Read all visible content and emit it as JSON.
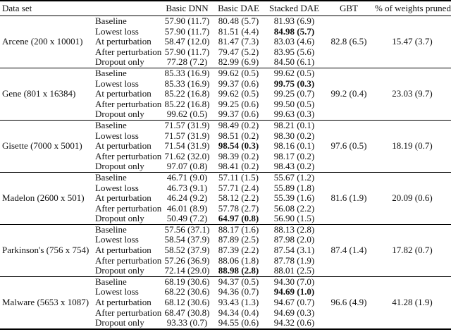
{
  "table": {
    "column_headers": {
      "dataset": "Data set",
      "method": "",
      "basic_dnn": "Basic DNN",
      "basic_dae": "Basic DAE",
      "stacked_dae": "Stacked DAE",
      "gbt": "GBT",
      "pruned": "% of weights pruned"
    },
    "value_format": "mean (std)",
    "groups": [
      {
        "dataset": "Arcene (200 x 10001)",
        "gbt": "82.8 (6.5)",
        "pruned": "15.47 (3.7)",
        "rows": [
          {
            "method": "Baseline",
            "values": [
              "57.90 (11.7)",
              "80.48 (5.7)",
              "81.93 (6.9)"
            ]
          },
          {
            "method": "Lowest loss",
            "values": [
              "57.90 (11.7)",
              "81.51 (4.4)",
              "84.98 (5.7)"
            ],
            "bold": 2
          },
          {
            "method": "At perturbation",
            "values": [
              "58.47 (12.0)",
              "81.47 (7.3)",
              "83.03 (4.6)"
            ]
          },
          {
            "method": "After perturbation",
            "values": [
              "57.90 (11.7)",
              "79.47 (5.2)",
              "83.95 (5.6)"
            ]
          },
          {
            "method": "Dropout only",
            "values": [
              "77.28 (7.2)",
              "82.99 (6.9)",
              "84.50 (6.1)"
            ]
          }
        ]
      },
      {
        "dataset": "Gene (801 x 16384)",
        "gbt": "99.2 (0.4)",
        "pruned": "23.03 (9.7)",
        "rows": [
          {
            "method": "Baseline",
            "values": [
              "85.33 (16.9)",
              "99.62 (0.5)",
              "99.62 (0.5)"
            ]
          },
          {
            "method": "Lowest loss",
            "values": [
              "85.33 (16.9)",
              "99.37 (0.6)",
              "99.75 (0.3)"
            ],
            "bold": 2
          },
          {
            "method": "At perturbation",
            "values": [
              "85.22 (16.8)",
              "99.62 (0.5)",
              "99.25 (0.7)"
            ]
          },
          {
            "method": "After perturbation",
            "values": [
              "85.22 (16.8)",
              "99.25 (0.6)",
              "99.50 (0.5)"
            ]
          },
          {
            "method": "Dropout only",
            "values": [
              "99.62 (0.5)",
              "99.37 (0.6)",
              "99.63 (0.3)"
            ]
          }
        ]
      },
      {
        "dataset": "Gisette (7000 x 5001)",
        "gbt": "97.6 (0.5)",
        "pruned": "18.19 (0.7)",
        "rows": [
          {
            "method": "Baseline",
            "values": [
              "71.57 (31.9)",
              "98.49 (0.2)",
              "98.21 (0.1)"
            ]
          },
          {
            "method": "Lowest loss",
            "values": [
              "71.57 (31.9)",
              "98.51 (0.2)",
              "98.30 (0.2)"
            ]
          },
          {
            "method": "At perturbation",
            "values": [
              "71.54 (31.9)",
              "98.54 (0.3)",
              "98.16 (0.1)"
            ],
            "bold": 1
          },
          {
            "method": "After perturbation",
            "values": [
              "71.62 (32.0)",
              "98.39 (0.2)",
              "98.17 (0.2)"
            ]
          },
          {
            "method": "Dropout only",
            "values": [
              "97.07 (0.8)",
              "98.41 (0.2)",
              "98.43 (0.2)"
            ]
          }
        ]
      },
      {
        "dataset": "Madelon (2600 x 501)",
        "gbt": "81.6 (1.9)",
        "pruned": "20.09 (0.6)",
        "rows": [
          {
            "method": "Baseline",
            "values": [
              "46.71 (9.0)",
              "57.11 (1.5)",
              "55.67 (1.2)"
            ]
          },
          {
            "method": "Lowest loss",
            "values": [
              "46.73 (9.1)",
              "57.71 (2.4)",
              "55.89 (1.8)"
            ]
          },
          {
            "method": "At perturbation",
            "values": [
              "46.24 (9.2)",
              "58.12 (2.2)",
              "55.39 (1.6)"
            ]
          },
          {
            "method": "After perturbation",
            "values": [
              "46.01 (8.9)",
              "57.78 (2.7)",
              "56.08 (2.2)"
            ]
          },
          {
            "method": "Dropout only",
            "values": [
              "50.49 (7.2)",
              "64.97 (0.8)",
              "56.90 (1.5)"
            ],
            "bold": 1
          }
        ]
      },
      {
        "dataset": "Parkinson's (756 x 754)",
        "gbt": "87.4 (1.4)",
        "pruned": "17.82 (0.7)",
        "rows": [
          {
            "method": "Baseline",
            "values": [
              "57.56 (37.1)",
              "88.17 (1.6)",
              "88.13 (2.8)"
            ]
          },
          {
            "method": "Lowest loss",
            "values": [
              "58.54 (37.9)",
              "87.89 (2.5)",
              "87.98 (2.0)"
            ]
          },
          {
            "method": "At perturbation",
            "values": [
              "58.52 (37.9)",
              "87.39 (2.2)",
              "87.54 (3.1)"
            ]
          },
          {
            "method": "After perturbation",
            "values": [
              "57.26 (36.9)",
              "88.06 (1.8)",
              "87.78 (1.9)"
            ]
          },
          {
            "method": "Dropout only",
            "values": [
              "72.14 (29.0)",
              "88.98 (2.8)",
              "88.01 (2.5)"
            ],
            "bold": 1
          }
        ]
      },
      {
        "dataset": "Malware (5653 x 1087)",
        "gbt": "96.6 (4.9)",
        "pruned": "41.28 (1.9)",
        "rows": [
          {
            "method": "Baseline",
            "values": [
              "68.19 (30.6)",
              "94.37 (0.5)",
              "94.30 (7.0)"
            ]
          },
          {
            "method": "Lowest loss",
            "values": [
              "68.22 (30.6)",
              "94.36 (0.7)",
              "94.69 (1.0)"
            ],
            "bold": 2
          },
          {
            "method": "At perturbation",
            "values": [
              "68.12 (30.6)",
              "93.43 (1.3)",
              "94.67 (0.7)"
            ]
          },
          {
            "method": "After perturbation",
            "values": [
              "68.47 (30.8)",
              "94.34 (0.4)",
              "94.69 (0.3)"
            ]
          },
          {
            "method": "Dropout only",
            "values": [
              "93.33 (0.7)",
              "94.55 (0.6)",
              "94.32 (0.6)"
            ]
          }
        ]
      }
    ]
  }
}
